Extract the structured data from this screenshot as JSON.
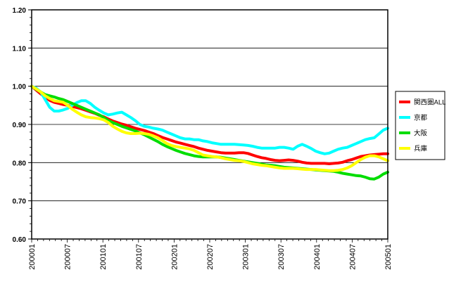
{
  "chart_data": {
    "type": "line",
    "title": "",
    "xlabel": "",
    "ylabel": "",
    "ylim": [
      0.6,
      1.2
    ],
    "y_ticks": [
      "0.60",
      "0.70",
      "0.80",
      "0.90",
      "1.00",
      "1.10",
      "1.20"
    ],
    "x_ticks": [
      "200001",
      "200007",
      "200101",
      "200107",
      "200201",
      "200207",
      "200301",
      "200307",
      "200401",
      "200407",
      "200501"
    ],
    "grid": "horizontal",
    "legend_position": "right",
    "x_start": "2000-01",
    "x_end": "2005-01",
    "series": [
      {
        "name": "関西圏ALL",
        "color": "#ff0000",
        "values": [
          1.0,
          0.99,
          0.98,
          0.972,
          0.963,
          0.958,
          0.955,
          0.952,
          0.95,
          0.947,
          0.944,
          0.941,
          0.937,
          0.933,
          0.929,
          0.924,
          0.92,
          0.914,
          0.909,
          0.905,
          0.901,
          0.898,
          0.894,
          0.89,
          0.887,
          0.884,
          0.88,
          0.876,
          0.871,
          0.866,
          0.862,
          0.858,
          0.854,
          0.851,
          0.848,
          0.845,
          0.842,
          0.838,
          0.835,
          0.832,
          0.83,
          0.828,
          0.826,
          0.825,
          0.825,
          0.825,
          0.826,
          0.826,
          0.824,
          0.82,
          0.816,
          0.813,
          0.811,
          0.808,
          0.806,
          0.805,
          0.806,
          0.807,
          0.806,
          0.804,
          0.801,
          0.799,
          0.798,
          0.798,
          0.798,
          0.798,
          0.797,
          0.798,
          0.799,
          0.801,
          0.805,
          0.808,
          0.812,
          0.816,
          0.818,
          0.82,
          0.821,
          0.822,
          0.823,
          0.823
        ]
      },
      {
        "name": "京都",
        "color": "#00ffff",
        "values": [
          1.0,
          0.995,
          0.985,
          0.965,
          0.945,
          0.935,
          0.935,
          0.938,
          0.942,
          0.95,
          0.957,
          0.962,
          0.962,
          0.955,
          0.945,
          0.937,
          0.93,
          0.925,
          0.927,
          0.93,
          0.932,
          0.925,
          0.918,
          0.91,
          0.9,
          0.895,
          0.893,
          0.89,
          0.888,
          0.885,
          0.88,
          0.875,
          0.87,
          0.865,
          0.862,
          0.862,
          0.86,
          0.86,
          0.857,
          0.855,
          0.852,
          0.85,
          0.848,
          0.848,
          0.848,
          0.848,
          0.847,
          0.846,
          0.845,
          0.843,
          0.84,
          0.838,
          0.838,
          0.838,
          0.838,
          0.84,
          0.84,
          0.838,
          0.835,
          0.843,
          0.848,
          0.843,
          0.837,
          0.83,
          0.826,
          0.823,
          0.825,
          0.83,
          0.835,
          0.838,
          0.84,
          0.845,
          0.85,
          0.855,
          0.86,
          0.863,
          0.865,
          0.875,
          0.885,
          0.89
        ]
      },
      {
        "name": "大阪",
        "color": "#00dd00",
        "values": [
          1.0,
          0.992,
          0.985,
          0.978,
          0.975,
          0.972,
          0.968,
          0.965,
          0.96,
          0.955,
          0.95,
          0.945,
          0.94,
          0.935,
          0.93,
          0.925,
          0.918,
          0.91,
          0.905,
          0.9,
          0.895,
          0.891,
          0.887,
          0.883,
          0.878,
          0.873,
          0.867,
          0.861,
          0.855,
          0.848,
          0.842,
          0.837,
          0.832,
          0.828,
          0.824,
          0.821,
          0.818,
          0.816,
          0.815,
          0.815,
          0.815,
          0.815,
          0.814,
          0.812,
          0.81,
          0.808,
          0.806,
          0.804,
          0.802,
          0.8,
          0.798,
          0.796,
          0.794,
          0.793,
          0.792,
          0.79,
          0.788,
          0.787,
          0.786,
          0.785,
          0.784,
          0.783,
          0.782,
          0.781,
          0.78,
          0.779,
          0.778,
          0.777,
          0.775,
          0.772,
          0.77,
          0.768,
          0.766,
          0.765,
          0.762,
          0.758,
          0.757,
          0.762,
          0.77,
          0.775
        ]
      },
      {
        "name": "兵庫",
        "color": "#ffff00",
        "values": [
          1.0,
          0.993,
          0.985,
          0.975,
          0.968,
          0.962,
          0.96,
          0.958,
          0.95,
          0.94,
          0.932,
          0.925,
          0.92,
          0.918,
          0.917,
          0.915,
          0.912,
          0.905,
          0.895,
          0.888,
          0.882,
          0.878,
          0.876,
          0.876,
          0.877,
          0.876,
          0.874,
          0.87,
          0.865,
          0.858,
          0.85,
          0.845,
          0.842,
          0.84,
          0.838,
          0.836,
          0.832,
          0.826,
          0.82,
          0.818,
          0.816,
          0.815,
          0.813,
          0.81,
          0.808,
          0.806,
          0.805,
          0.803,
          0.8,
          0.797,
          0.795,
          0.793,
          0.792,
          0.79,
          0.788,
          0.786,
          0.785,
          0.785,
          0.785,
          0.784,
          0.783,
          0.782,
          0.782,
          0.782,
          0.781,
          0.78,
          0.779,
          0.779,
          0.78,
          0.782,
          0.786,
          0.792,
          0.8,
          0.808,
          0.814,
          0.818,
          0.818,
          0.815,
          0.81,
          0.805
        ]
      }
    ]
  }
}
